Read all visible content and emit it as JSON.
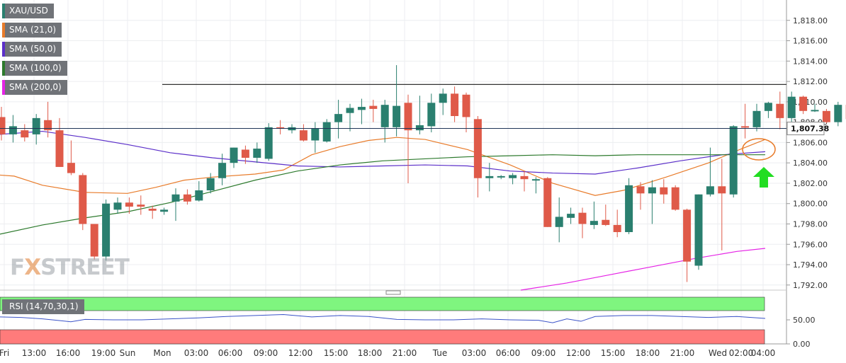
{
  "legend": {
    "symbol": "XAU/USD",
    "sma21": "SMA (21,0)",
    "sma50": "SMA (50,0)",
    "sma100": "SMA (100,0)",
    "sma200": "SMA (200,0)",
    "rsi": "RSI (14,70,30,1)"
  },
  "watermark": {
    "pre": "F",
    "x": "X",
    "post": "STREET"
  },
  "colors": {
    "bull": "#2a7f6f",
    "bear": "#df5a49",
    "sma21": "#e87b2a",
    "sma50": "#5b2fc9",
    "sma100": "#2d7a2d",
    "sma200": "#e523e5",
    "rsi": "#3a52c8",
    "overbought": "#7ff57f",
    "oversold": "#ff7b7b",
    "arrow": "#22dd22"
  },
  "chart_data": {
    "type": "candlestick",
    "ylim": [
      1791.5,
      1820.0
    ],
    "yticks": [
      "1,792.00",
      "1,794.00",
      "1,796.00",
      "1,798.00",
      "1,800.00",
      "1,802.00",
      "1,804.00",
      "1,806.00",
      "1,808.00",
      "1,810.00",
      "1,812.00",
      "1,814.00",
      "1,816.00",
      "1,818.00"
    ],
    "x_labels": [
      "Fri",
      "13:00",
      "16:00",
      "19:00",
      "Sun",
      "Mon",
      "03:00",
      "06:00",
      "09:00",
      "12:00",
      "15:00",
      "18:00",
      "21:00",
      "Tue",
      "03:00",
      "06:00",
      "09:00",
      "12:00",
      "15:00",
      "18:00",
      "21:00",
      "Wed",
      "02:00",
      "04:00"
    ],
    "last_price": "1,807.38",
    "resistance": 1811.7,
    "candles": [
      [
        1808.5,
        1809.5,
        1806.2,
        1806.8
      ],
      [
        1806.8,
        1808.7,
        1806.0,
        1807.6
      ],
      [
        1807.2,
        1807.8,
        1806.1,
        1806.5
      ],
      [
        1806.8,
        1808.8,
        1805.8,
        1808.4
      ],
      [
        1808.2,
        1810.0,
        1806.5,
        1807.2
      ],
      [
        1807.2,
        1808.4,
        1803.6,
        1803.6
      ],
      [
        1804.0,
        1806.2,
        1802.8,
        1803.0
      ],
      [
        1802.8,
        1803.0,
        1797.4,
        1798.0
      ],
      [
        1798.0,
        1798.0,
        1794.5,
        1794.8
      ],
      [
        1794.8,
        1800.4,
        1794.4,
        1800.0
      ],
      [
        1799.4,
        1800.6,
        1799.0,
        1800.1
      ],
      [
        1800.1,
        1800.6,
        1799.0,
        1799.7
      ],
      [
        1799.9,
        1800.8,
        1798.9,
        1799.7
      ],
      [
        1799.5,
        1799.8,
        1798.5,
        1799.3
      ],
      [
        1799.2,
        1799.6,
        1798.9,
        1799.4
      ],
      [
        1800.2,
        1801.5,
        1798.3,
        1800.9
      ],
      [
        1800.9,
        1801.4,
        1799.9,
        1800.2
      ],
      [
        1800.3,
        1802.2,
        1800.2,
        1801.3
      ],
      [
        1801.3,
        1803.0,
        1801.0,
        1802.5
      ],
      [
        1802.5,
        1804.9,
        1801.8,
        1804.0
      ],
      [
        1804.0,
        1805.5,
        1803.5,
        1805.5
      ],
      [
        1805.3,
        1805.7,
        1803.9,
        1804.5
      ],
      [
        1804.5,
        1806.0,
        1804.0,
        1805.4
      ],
      [
        1804.4,
        1807.9,
        1804.2,
        1807.5
      ],
      [
        1807.5,
        1808.2,
        1806.8,
        1807.4
      ],
      [
        1807.2,
        1807.8,
        1806.9,
        1807.5
      ],
      [
        1807.2,
        1807.8,
        1806.1,
        1806.2
      ],
      [
        1806.2,
        1808.0,
        1805.0,
        1807.4
      ],
      [
        1806.1,
        1808.3,
        1806.0,
        1808.0
      ],
      [
        1808.0,
        1810.2,
        1806.4,
        1808.8
      ],
      [
        1808.9,
        1809.8,
        1807.1,
        1809.4
      ],
      [
        1809.2,
        1810.3,
        1807.8,
        1809.5
      ],
      [
        1809.6,
        1810.2,
        1808.0,
        1809.3
      ],
      [
        1807.5,
        1810.2,
        1806.0,
        1809.7
      ],
      [
        1807.5,
        1813.6,
        1806.6,
        1809.6
      ],
      [
        1809.9,
        1810.7,
        1802.0,
        1807.2
      ],
      [
        1807.2,
        1810.6,
        1806.8,
        1807.7
      ],
      [
        1807.6,
        1810.8,
        1807.0,
        1809.9
      ],
      [
        1809.9,
        1811.3,
        1808.7,
        1810.8
      ],
      [
        1810.8,
        1811.5,
        1808.0,
        1808.6
      ],
      [
        1810.7,
        1810.9,
        1807.0,
        1808.5
      ],
      [
        1808.3,
        1808.6,
        1800.6,
        1802.5
      ],
      [
        1802.5,
        1804.0,
        1801.2,
        1802.7
      ],
      [
        1802.6,
        1802.8,
        1802.4,
        1802.7
      ],
      [
        1802.5,
        1803.0,
        1801.9,
        1802.8
      ],
      [
        1802.7,
        1803.2,
        1801.2,
        1802.4
      ],
      [
        1802.3,
        1802.6,
        1801.0,
        1802.4
      ],
      [
        1802.5,
        1802.6,
        1797.7,
        1797.7
      ],
      [
        1797.7,
        1800.6,
        1796.2,
        1798.7
      ],
      [
        1798.6,
        1799.6,
        1798.0,
        1799.0
      ],
      [
        1799.1,
        1799.6,
        1796.6,
        1798.0
      ],
      [
        1797.9,
        1800.2,
        1797.5,
        1798.3
      ],
      [
        1798.4,
        1799.9,
        1797.8,
        1797.9
      ],
      [
        1797.9,
        1799.4,
        1796.7,
        1797.2
      ],
      [
        1797.2,
        1802.5,
        1797.0,
        1801.8
      ],
      [
        1801.7,
        1802.1,
        1799.4,
        1801.0
      ],
      [
        1801.0,
        1802.3,
        1798.0,
        1801.6
      ],
      [
        1801.6,
        1802.4,
        1800.0,
        1800.9
      ],
      [
        1801.6,
        1801.8,
        1799.3,
        1799.4
      ],
      [
        1799.4,
        1799.5,
        1792.3,
        1794.3
      ],
      [
        1793.9,
        1800.9,
        1793.5,
        1800.9
      ],
      [
        1800.9,
        1805.5,
        1800.7,
        1801.7
      ],
      [
        1801.7,
        1804.4,
        1795.4,
        1801.0
      ],
      [
        1800.9,
        1807.7,
        1800.6,
        1807.6
      ],
      [
        1807.6,
        1809.8,
        1806.4,
        1807.5
      ],
      [
        1807.5,
        1809.8,
        1807.1,
        1809.1
      ],
      [
        1809.1,
        1810.0,
        1808.4,
        1809.9
      ],
      [
        1809.8,
        1811.0,
        1807.3,
        1808.4
      ],
      [
        1808.4,
        1811.0,
        1807.1,
        1810.5
      ],
      [
        1810.5,
        1810.6,
        1808.8,
        1809.1
      ],
      [
        1809.1,
        1809.8,
        1809.0,
        1809.2
      ],
      [
        1809.1,
        1809.3,
        1807.9,
        1808.0
      ],
      [
        1808.0,
        1810.0,
        1807.6,
        1809.7
      ],
      [
        1809.7,
        1811.5,
        1807.5,
        1808.3
      ],
      [
        1808.3,
        1809.8,
        1808.1,
        1809.3
      ],
      [
        1809.3,
        1810.2,
        1808.4,
        1809.8
      ],
      [
        1809.8,
        1810.1,
        1808.5,
        1809.2
      ],
      [
        1809.0,
        1809.0,
        1806.8,
        1807.4
      ]
    ],
    "series": [
      {
        "name": "SMA (21,0)",
        "values": [
          [
            0,
            1802.8
          ],
          [
            20,
            1802.7
          ],
          [
            60,
            1801.8
          ],
          [
            120,
            1801.1
          ],
          [
            180,
            1801.0
          ],
          [
            220,
            1801.6
          ],
          [
            260,
            1802.3
          ],
          [
            300,
            1802.6
          ],
          [
            360,
            1802.9
          ],
          [
            400,
            1803.3
          ],
          [
            440,
            1804.8
          ],
          [
            480,
            1805.6
          ],
          [
            520,
            1806.2
          ],
          [
            560,
            1806.5
          ],
          [
            600,
            1806.3
          ],
          [
            660,
            1805.3
          ],
          [
            720,
            1803.8
          ],
          [
            780,
            1802.0
          ],
          [
            840,
            1800.8
          ],
          [
            880,
            1801.3
          ],
          [
            940,
            1802.6
          ],
          [
            1000,
            1804.0
          ],
          [
            1040,
            1805.2
          ],
          [
            1080,
            1806.3
          ]
        ]
      },
      {
        "name": "SMA (50,0)",
        "values": [
          [
            0,
            1806.8
          ],
          [
            60,
            1807.1
          ],
          [
            120,
            1806.5
          ],
          [
            180,
            1805.8
          ],
          [
            240,
            1805.0
          ],
          [
            300,
            1804.5
          ],
          [
            360,
            1804.1
          ],
          [
            420,
            1803.7
          ],
          [
            480,
            1803.6
          ],
          [
            540,
            1803.7
          ],
          [
            600,
            1803.8
          ],
          [
            660,
            1803.7
          ],
          [
            720,
            1803.2
          ],
          [
            780,
            1803.0
          ],
          [
            840,
            1802.9
          ],
          [
            900,
            1803.5
          ],
          [
            960,
            1804.2
          ],
          [
            1020,
            1804.8
          ],
          [
            1080,
            1805.1
          ]
        ]
      },
      {
        "name": "SMA (100,0)",
        "values": [
          [
            0,
            1797.0
          ],
          [
            60,
            1797.9
          ],
          [
            120,
            1798.6
          ],
          [
            180,
            1799.2
          ],
          [
            240,
            1800.1
          ],
          [
            300,
            1801.2
          ],
          [
            360,
            1802.3
          ],
          [
            420,
            1803.2
          ],
          [
            480,
            1803.8
          ],
          [
            540,
            1804.2
          ],
          [
            600,
            1804.4
          ],
          [
            660,
            1804.6
          ],
          [
            720,
            1804.7
          ],
          [
            780,
            1804.8
          ],
          [
            840,
            1804.7
          ],
          [
            900,
            1804.8
          ],
          [
            960,
            1804.8
          ],
          [
            1020,
            1804.8
          ],
          [
            1080,
            1804.8
          ]
        ]
      },
      {
        "name": "SMA (200,0)",
        "values": [
          [
            735,
            1791.5
          ],
          [
            800,
            1792.2
          ],
          [
            860,
            1793.0
          ],
          [
            920,
            1793.8
          ],
          [
            980,
            1794.6
          ],
          [
            1040,
            1795.3
          ],
          [
            1080,
            1795.6
          ]
        ]
      }
    ],
    "rsi": {
      "ticks": [
        "50.00",
        "0.00"
      ],
      "ylim": [
        0,
        100
      ],
      "values": [
        [
          0,
          56
        ],
        [
          30,
          55
        ],
        [
          60,
          52
        ],
        [
          80,
          49
        ],
        [
          100,
          46
        ],
        [
          120,
          51
        ],
        [
          160,
          50
        ],
        [
          200,
          50
        ],
        [
          240,
          52
        ],
        [
          280,
          54
        ],
        [
          320,
          57
        ],
        [
          360,
          59
        ],
        [
          400,
          61
        ],
        [
          440,
          56
        ],
        [
          480,
          59
        ],
        [
          520,
          57
        ],
        [
          560,
          51
        ],
        [
          600,
          50
        ],
        [
          640,
          50
        ],
        [
          680,
          52
        ],
        [
          720,
          50
        ],
        [
          760,
          49
        ],
        [
          780,
          44
        ],
        [
          800,
          52
        ],
        [
          820,
          47
        ],
        [
          840,
          57
        ],
        [
          880,
          59
        ],
        [
          920,
          59
        ],
        [
          960,
          57
        ],
        [
          1000,
          55
        ],
        [
          1040,
          57
        ],
        [
          1080,
          53
        ]
      ]
    }
  }
}
